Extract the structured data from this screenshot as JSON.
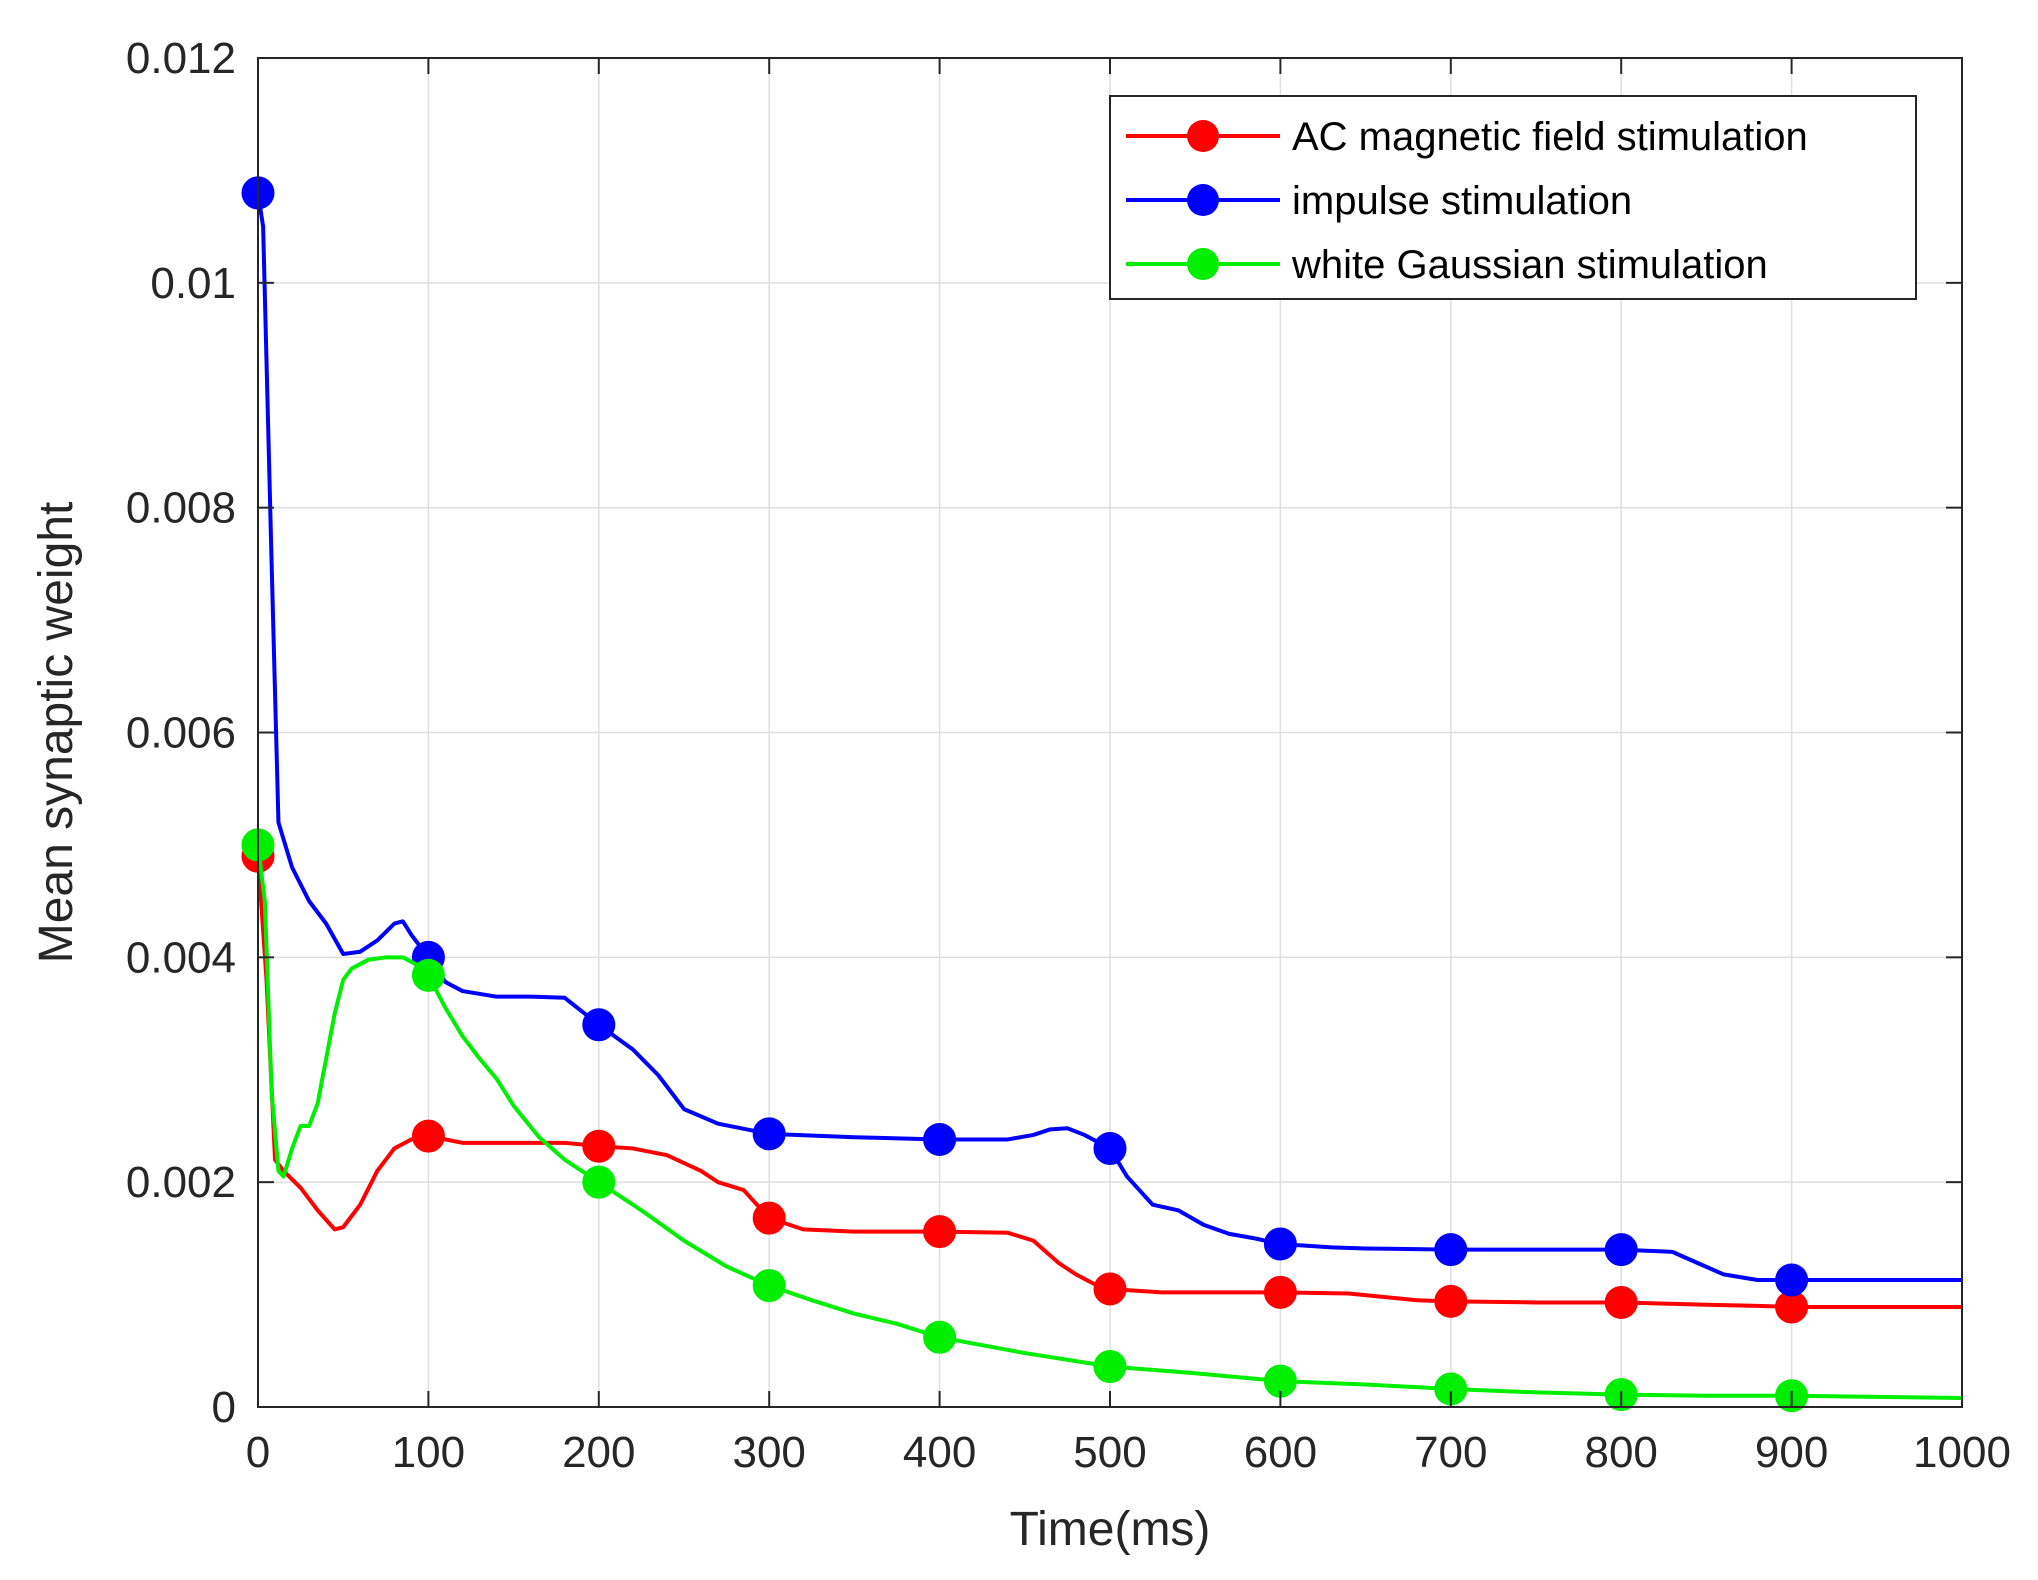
{
  "chart_data": {
    "type": "line",
    "title": "",
    "xlabel": "Time(ms)",
    "ylabel": "Mean synaptic weight",
    "xlim": [
      0,
      1000
    ],
    "ylim": [
      0,
      0.012
    ],
    "grid": true,
    "legend_position": "top-right",
    "x_ticks": [
      0,
      100,
      200,
      300,
      400,
      500,
      600,
      700,
      800,
      900,
      1000
    ],
    "x_tick_labels": [
      "0",
      "100",
      "200",
      "300",
      "400",
      "500",
      "600",
      "700",
      "800",
      "900",
      "1000"
    ],
    "y_ticks": [
      0,
      0.002,
      0.004,
      0.006,
      0.008,
      0.01,
      0.012
    ],
    "y_tick_labels": [
      "0",
      "0.002",
      "0.004",
      "0.006",
      "0.008",
      "0.01",
      "0.012"
    ],
    "marker_x": [
      0,
      100,
      200,
      300,
      400,
      500,
      600,
      700,
      800,
      900
    ],
    "series": [
      {
        "name": "AC magnetic field stimulation",
        "color": "#ff0000",
        "x": [
          0,
          5,
          10,
          15,
          25,
          35,
          45,
          50,
          60,
          70,
          80,
          90,
          100,
          120,
          150,
          180,
          200,
          220,
          240,
          260,
          270,
          285,
          300,
          320,
          350,
          400,
          440,
          455,
          470,
          480,
          490,
          500,
          530,
          560,
          600,
          640,
          680,
          700,
          750,
          800,
          850,
          880,
          900,
          950,
          1000
        ],
        "values": [
          0.0049,
          0.0038,
          0.0022,
          0.0021,
          0.00195,
          0.00175,
          0.00158,
          0.0016,
          0.0018,
          0.0021,
          0.0023,
          0.00238,
          0.00241,
          0.00235,
          0.00235,
          0.00235,
          0.00232,
          0.0023,
          0.00224,
          0.0021,
          0.002,
          0.00193,
          0.00168,
          0.00158,
          0.00156,
          0.00156,
          0.00155,
          0.00148,
          0.00128,
          0.00118,
          0.0011,
          0.00105,
          0.00102,
          0.00102,
          0.00102,
          0.00101,
          0.00095,
          0.00094,
          0.00093,
          0.00093,
          0.00091,
          0.0009,
          0.00089,
          0.00089,
          0.00089
        ]
      },
      {
        "name": "impulse stimulation",
        "color": "#0000ff",
        "x": [
          0,
          3,
          8,
          12,
          20,
          30,
          40,
          50,
          60,
          70,
          80,
          85,
          90,
          100,
          110,
          120,
          140,
          160,
          180,
          200,
          220,
          235,
          250,
          270,
          300,
          350,
          400,
          440,
          455,
          465,
          475,
          485,
          500,
          510,
          525,
          540,
          555,
          570,
          585,
          600,
          630,
          650,
          700,
          750,
          800,
          830,
          845,
          860,
          880,
          900,
          950,
          1000
        ],
        "values": [
          0.0108,
          0.0105,
          0.0075,
          0.0052,
          0.0048,
          0.0045,
          0.0043,
          0.00403,
          0.00405,
          0.00415,
          0.0043,
          0.00432,
          0.0042,
          0.004,
          0.00378,
          0.0037,
          0.00365,
          0.00365,
          0.00364,
          0.0034,
          0.00318,
          0.00295,
          0.00265,
          0.00252,
          0.00243,
          0.0024,
          0.00238,
          0.00238,
          0.00242,
          0.00247,
          0.00248,
          0.00242,
          0.0023,
          0.00205,
          0.0018,
          0.00175,
          0.00162,
          0.00154,
          0.0015,
          0.00145,
          0.00142,
          0.00141,
          0.0014,
          0.0014,
          0.0014,
          0.00138,
          0.00128,
          0.00118,
          0.00113,
          0.00113,
          0.00113,
          0.00113
        ]
      },
      {
        "name": "white Gaussian stimulation",
        "color": "#00ee00",
        "x": [
          0,
          4,
          8,
          12,
          15,
          20,
          25,
          30,
          35,
          40,
          45,
          50,
          55,
          65,
          75,
          85,
          95,
          100,
          110,
          120,
          130,
          140,
          150,
          165,
          180,
          200,
          225,
          250,
          275,
          300,
          325,
          350,
          375,
          400,
          450,
          500,
          550,
          600,
          650,
          700,
          750,
          800,
          850,
          900,
          950,
          1000
        ],
        "values": [
          0.005,
          0.0045,
          0.0028,
          0.0021,
          0.00205,
          0.0023,
          0.0025,
          0.0025,
          0.0027,
          0.0031,
          0.0035,
          0.0038,
          0.0039,
          0.00398,
          0.004,
          0.004,
          0.00392,
          0.00384,
          0.00355,
          0.0033,
          0.0031,
          0.00292,
          0.00268,
          0.0024,
          0.0022,
          0.002,
          0.00175,
          0.00148,
          0.00125,
          0.00108,
          0.00095,
          0.00083,
          0.00074,
          0.00062,
          0.00048,
          0.00036,
          0.0003,
          0.00023,
          0.0002,
          0.00016,
          0.00013,
          0.00011,
          0.0001,
          0.0001,
          9e-05,
          8e-05
        ]
      }
    ]
  }
}
